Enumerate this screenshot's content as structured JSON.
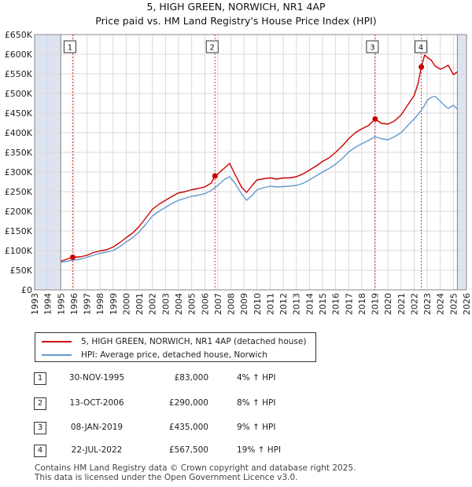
{
  "chart_data": {
    "type": "line",
    "title": "5, HIGH GREEN, NORWICH, NR1 4AP",
    "subtitle": "Price paid vs. HM Land Registry's House Price Index (HPI)",
    "xlim": [
      1993,
      2026
    ],
    "ylim": [
      0,
      650000
    ],
    "x_ticks": [
      1993,
      1994,
      1995,
      1996,
      1997,
      1998,
      1999,
      2000,
      2001,
      2002,
      2003,
      2004,
      2005,
      2006,
      2007,
      2008,
      2009,
      2010,
      2011,
      2012,
      2013,
      2014,
      2015,
      2016,
      2017,
      2018,
      2019,
      2020,
      2021,
      2022,
      2023,
      2024,
      2025,
      2026
    ],
    "y_ticks": [
      0,
      50000,
      100000,
      150000,
      200000,
      250000,
      300000,
      350000,
      400000,
      450000,
      500000,
      550000,
      600000,
      650000
    ],
    "y_tick_labels": [
      "£0",
      "£50K",
      "£100K",
      "£150K",
      "£200K",
      "£250K",
      "£300K",
      "£350K",
      "£400K",
      "£450K",
      "£500K",
      "£550K",
      "£600K",
      "£650K"
    ],
    "data_range": [
      1995.0,
      2025.3
    ],
    "series": [
      {
        "name": "5, HIGH GREEN, NORWICH, NR1 4AP (detached house)",
        "color": "#cc0000",
        "x": [
          1995.0,
          1995.91,
          1996.5,
          1997.0,
          1997.5,
          1998.0,
          1998.5,
          1999.0,
          1999.5,
          2000.0,
          2000.5,
          2001.0,
          2001.5,
          2002.0,
          2002.5,
          2003.0,
          2003.5,
          2004.0,
          2004.5,
          2005.0,
          2005.5,
          2006.0,
          2006.5,
          2006.78,
          2007.0,
          2007.5,
          2007.9,
          2008.3,
          2008.8,
          2009.2,
          2009.6,
          2010.0,
          2010.5,
          2011.0,
          2011.5,
          2012.0,
          2012.5,
          2013.0,
          2013.5,
          2014.0,
          2014.5,
          2015.0,
          2015.5,
          2016.0,
          2016.5,
          2017.0,
          2017.5,
          2018.0,
          2018.5,
          2019.02,
          2019.5,
          2020.0,
          2020.5,
          2021.0,
          2021.5,
          2022.0,
          2022.3,
          2022.55,
          2022.8,
          2023.0,
          2023.3,
          2023.6,
          2024.0,
          2024.3,
          2024.6,
          2025.0,
          2025.3
        ],
        "values": [
          73000,
          83000,
          84000,
          88000,
          95000,
          99000,
          102000,
          109000,
          120000,
          133000,
          145000,
          162000,
          183000,
          205000,
          218000,
          228000,
          238000,
          247000,
          250000,
          255000,
          258000,
          262000,
          272000,
          290000,
          295000,
          310000,
          322000,
          295000,
          262000,
          248000,
          265000,
          280000,
          283000,
          285000,
          282000,
          285000,
          285000,
          288000,
          295000,
          305000,
          315000,
          327000,
          336000,
          350000,
          366000,
          385000,
          400000,
          410000,
          418000,
          435000,
          424000,
          422000,
          430000,
          445000,
          470000,
          495000,
          525000,
          567500,
          598000,
          592000,
          585000,
          570000,
          562000,
          566000,
          572000,
          548000,
          555000
        ]
      },
      {
        "name": "HPI: Average price, detached house, Norwich",
        "color": "#6699cc",
        "x": [
          1995.0,
          1995.5,
          1996.0,
          1996.5,
          1997.0,
          1997.5,
          1998.0,
          1998.5,
          1999.0,
          1999.5,
          2000.0,
          2000.5,
          2001.0,
          2001.5,
          2002.0,
          2002.5,
          2003.0,
          2003.5,
          2004.0,
          2004.5,
          2005.0,
          2005.5,
          2006.0,
          2006.5,
          2007.0,
          2007.5,
          2007.9,
          2008.3,
          2008.8,
          2009.2,
          2009.6,
          2010.0,
          2010.5,
          2011.0,
          2011.5,
          2012.0,
          2012.5,
          2013.0,
          2013.5,
          2014.0,
          2014.5,
          2015.0,
          2015.5,
          2016.0,
          2016.5,
          2017.0,
          2017.5,
          2018.0,
          2018.5,
          2019.0,
          2019.5,
          2020.0,
          2020.5,
          2021.0,
          2021.5,
          2022.0,
          2022.5,
          2022.8,
          2023.0,
          2023.3,
          2023.6,
          2024.0,
          2024.3,
          2024.6,
          2025.0,
          2025.3
        ],
        "values": [
          70000,
          73000,
          76000,
          78000,
          83000,
          88000,
          93000,
          96000,
          100000,
          110000,
          122000,
          133000,
          148000,
          167000,
          188000,
          200000,
          210000,
          220000,
          228000,
          233000,
          238000,
          241000,
          245000,
          253000,
          266000,
          281000,
          288000,
          272000,
          245000,
          228000,
          240000,
          255000,
          260000,
          264000,
          262000,
          263000,
          264000,
          266000,
          271000,
          280000,
          290000,
          300000,
          309000,
          320000,
          334000,
          351000,
          363000,
          372000,
          380000,
          390000,
          385000,
          382000,
          390000,
          400000,
          418000,
          435000,
          455000,
          470000,
          483000,
          490000,
          493000,
          480000,
          470000,
          462000,
          470000,
          460000
        ]
      }
    ],
    "sales": [
      {
        "id": "1",
        "x": 1995.91,
        "value": 83000,
        "date": "30-NOV-1995",
        "price": "£83,000",
        "hpi": "4% ↑ HPI"
      },
      {
        "id": "2",
        "x": 2006.78,
        "value": 290000,
        "date": "13-OCT-2006",
        "price": "£290,000",
        "hpi": "8% ↑ HPI"
      },
      {
        "id": "3",
        "x": 2019.02,
        "value": 435000,
        "date": "08-JAN-2019",
        "price": "£435,000",
        "hpi": "9% ↑ HPI"
      },
      {
        "id": "4",
        "x": 2022.55,
        "value": 567500,
        "date": "22-JUL-2022",
        "price": "£567,500",
        "hpi": "19% ↑ HPI"
      }
    ],
    "colors": {
      "grid": "#d9d9d9",
      "shade": "#dde4f0",
      "vline": "#cc0000",
      "sale_line": "#cc0000",
      "hpi_line": "#6699cc"
    }
  },
  "legend": {
    "sale_label": "5, HIGH GREEN, NORWICH, NR1 4AP (detached house)",
    "hpi_label": "HPI: Average price, detached house, Norwich"
  },
  "footer": {
    "line1": "Contains HM Land Registry data © Crown copyright and database right 2025.",
    "line2": "This data is licensed under the Open Government Licence v3.0."
  }
}
